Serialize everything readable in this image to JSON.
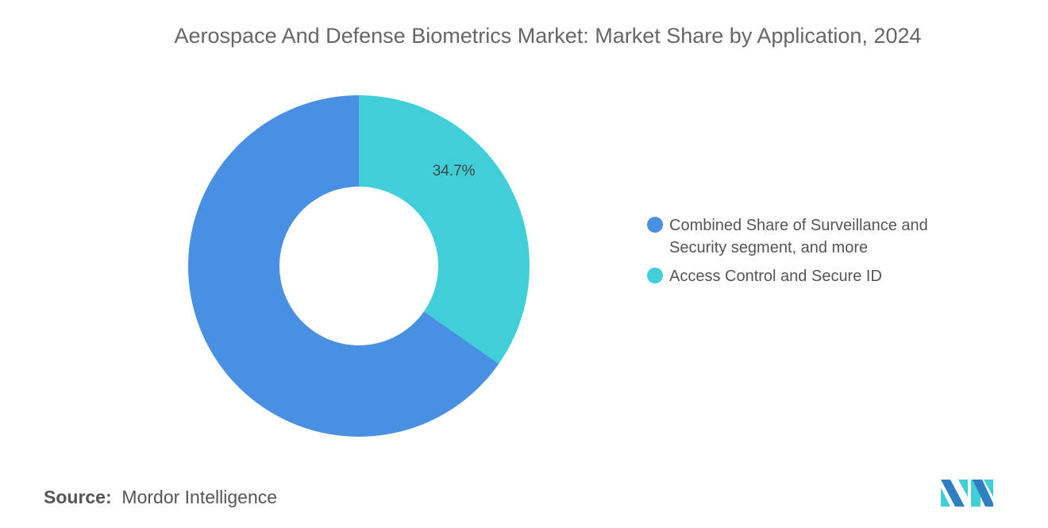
{
  "title": "Aerospace And Defense Biometrics Market: Market Share by Application, 2024",
  "chart_data": {
    "type": "pie",
    "donut": true,
    "title": "Aerospace And Defense Biometrics Market: Market Share by Application, 2024",
    "categories": [
      "Access Control and Secure ID",
      "Combined Share of Surveillance and Security segment, and more"
    ],
    "values": [
      34.7,
      65.3
    ],
    "data_labels": [
      "34.7%",
      ""
    ],
    "colors": [
      "#40CFD9",
      "#4A90E2"
    ],
    "legend": {
      "placement": "right",
      "items": [
        {
          "label": "Combined Share of Surveillance and Security segment, and more",
          "color": "#4A90E2"
        },
        {
          "label": "Access Control and Secure ID",
          "color": "#40CFD9"
        }
      ]
    }
  },
  "source": {
    "label": "Source:",
    "value": "Mordor Intelligence"
  },
  "logo": {
    "name": "Mordor Intelligence logo",
    "icon": "mordor-logo-icon"
  }
}
